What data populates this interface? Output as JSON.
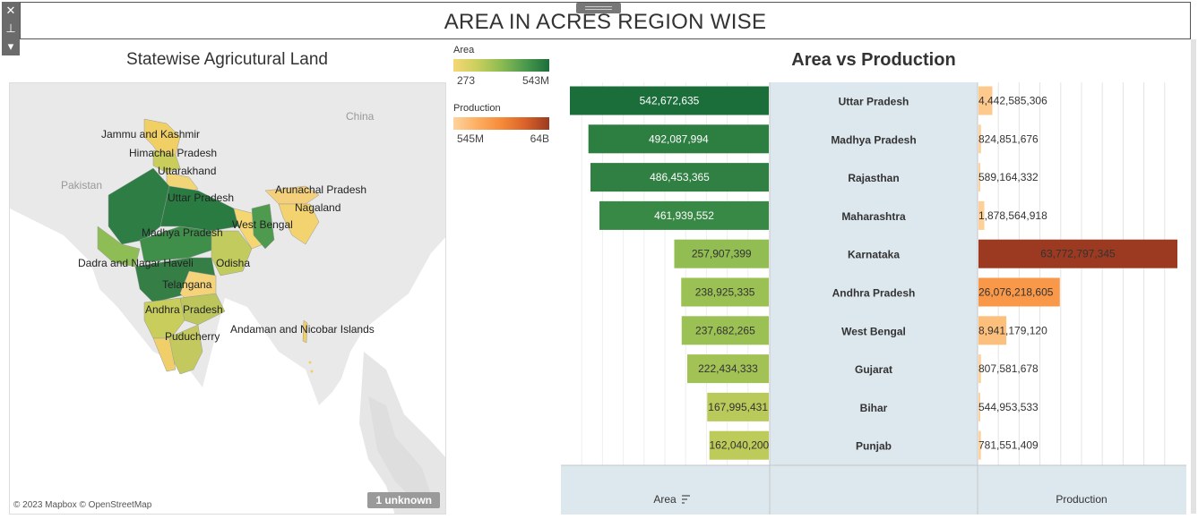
{
  "dashboard": {
    "title": "AREA IN ACRES REGION WISE"
  },
  "map": {
    "title": "Statewise Agricutural Land",
    "attribution": "© 2023 Mapbox © OpenStreetMap",
    "unknown_badge": "1 unknown",
    "country_labels": [
      {
        "name": "China"
      },
      {
        "name": "Pakistan"
      }
    ],
    "state_labels": [
      {
        "name": "Jammu and Kashmir"
      },
      {
        "name": "Himachal Pradesh"
      },
      {
        "name": "Uttarakhand"
      },
      {
        "name": "Uttar Pradesh"
      },
      {
        "name": "Arunachal Pradesh"
      },
      {
        "name": "Nagaland"
      },
      {
        "name": "West Bengal"
      },
      {
        "name": "Madhya Pradesh"
      },
      {
        "name": "Odisha"
      },
      {
        "name": "Dadra and Nagar Haveli"
      },
      {
        "name": "Telangana"
      },
      {
        "name": "Andhra Pradesh"
      },
      {
        "name": "Puducherry"
      },
      {
        "name": "Andaman and Nicobar Islands"
      }
    ]
  },
  "legend": {
    "area": {
      "title": "Area",
      "min_label": "273",
      "max_label": "543M",
      "colors": [
        "#f5d775",
        "#c9cf5c",
        "#8cbb52",
        "#4c9a4e",
        "#1b6e3a"
      ]
    },
    "production": {
      "title": "Production",
      "min_label": "545M",
      "max_label": "64B",
      "colors": [
        "#fdd49e",
        "#fdae61",
        "#f58b3a",
        "#d9622a",
        "#9b3a20"
      ]
    }
  },
  "chart_data": {
    "type": "bar",
    "title": "Area vs Production",
    "categories": [
      "Uttar Pradesh",
      "Madhya Pradesh",
      "Rajasthan",
      "Maharashtra",
      "Karnataka",
      "Andhra Pradesh",
      "West Bengal",
      "Gujarat",
      "Bihar",
      "Punjab"
    ],
    "series": [
      {
        "name": "Area",
        "values": [
          542672635,
          492087994,
          486453365,
          461939552,
          257907399,
          238925335,
          237682265,
          222434333,
          167995431,
          162040200
        ],
        "labels": [
          "542,672,635",
          "492,087,994",
          "486,453,365",
          "461,939,552",
          "257,907,399",
          "238,925,335",
          "237,682,265",
          "222,434,333",
          "167,995,431",
          "162,040,200"
        ]
      },
      {
        "name": "Production",
        "values": [
          4442585306,
          824851676,
          589164332,
          1878564918,
          63772797345,
          26076218605,
          8941179120,
          807581678,
          544953533,
          781551409
        ],
        "labels": [
          "4,442,585,306",
          "824,851,676",
          "589,164,332",
          "1,878,564,918",
          "63,772,797,345",
          "26,076,218,605",
          "8,941,179,120",
          "807,581,678",
          "544,953,533",
          "781,551,409"
        ]
      }
    ],
    "axis_labels": {
      "area": "Area",
      "production": "Production"
    },
    "area_sort_icon": "sort-descending-icon",
    "colors": {
      "panel_bg": "#dde8ee",
      "label_bg": "#dde8ee"
    }
  }
}
